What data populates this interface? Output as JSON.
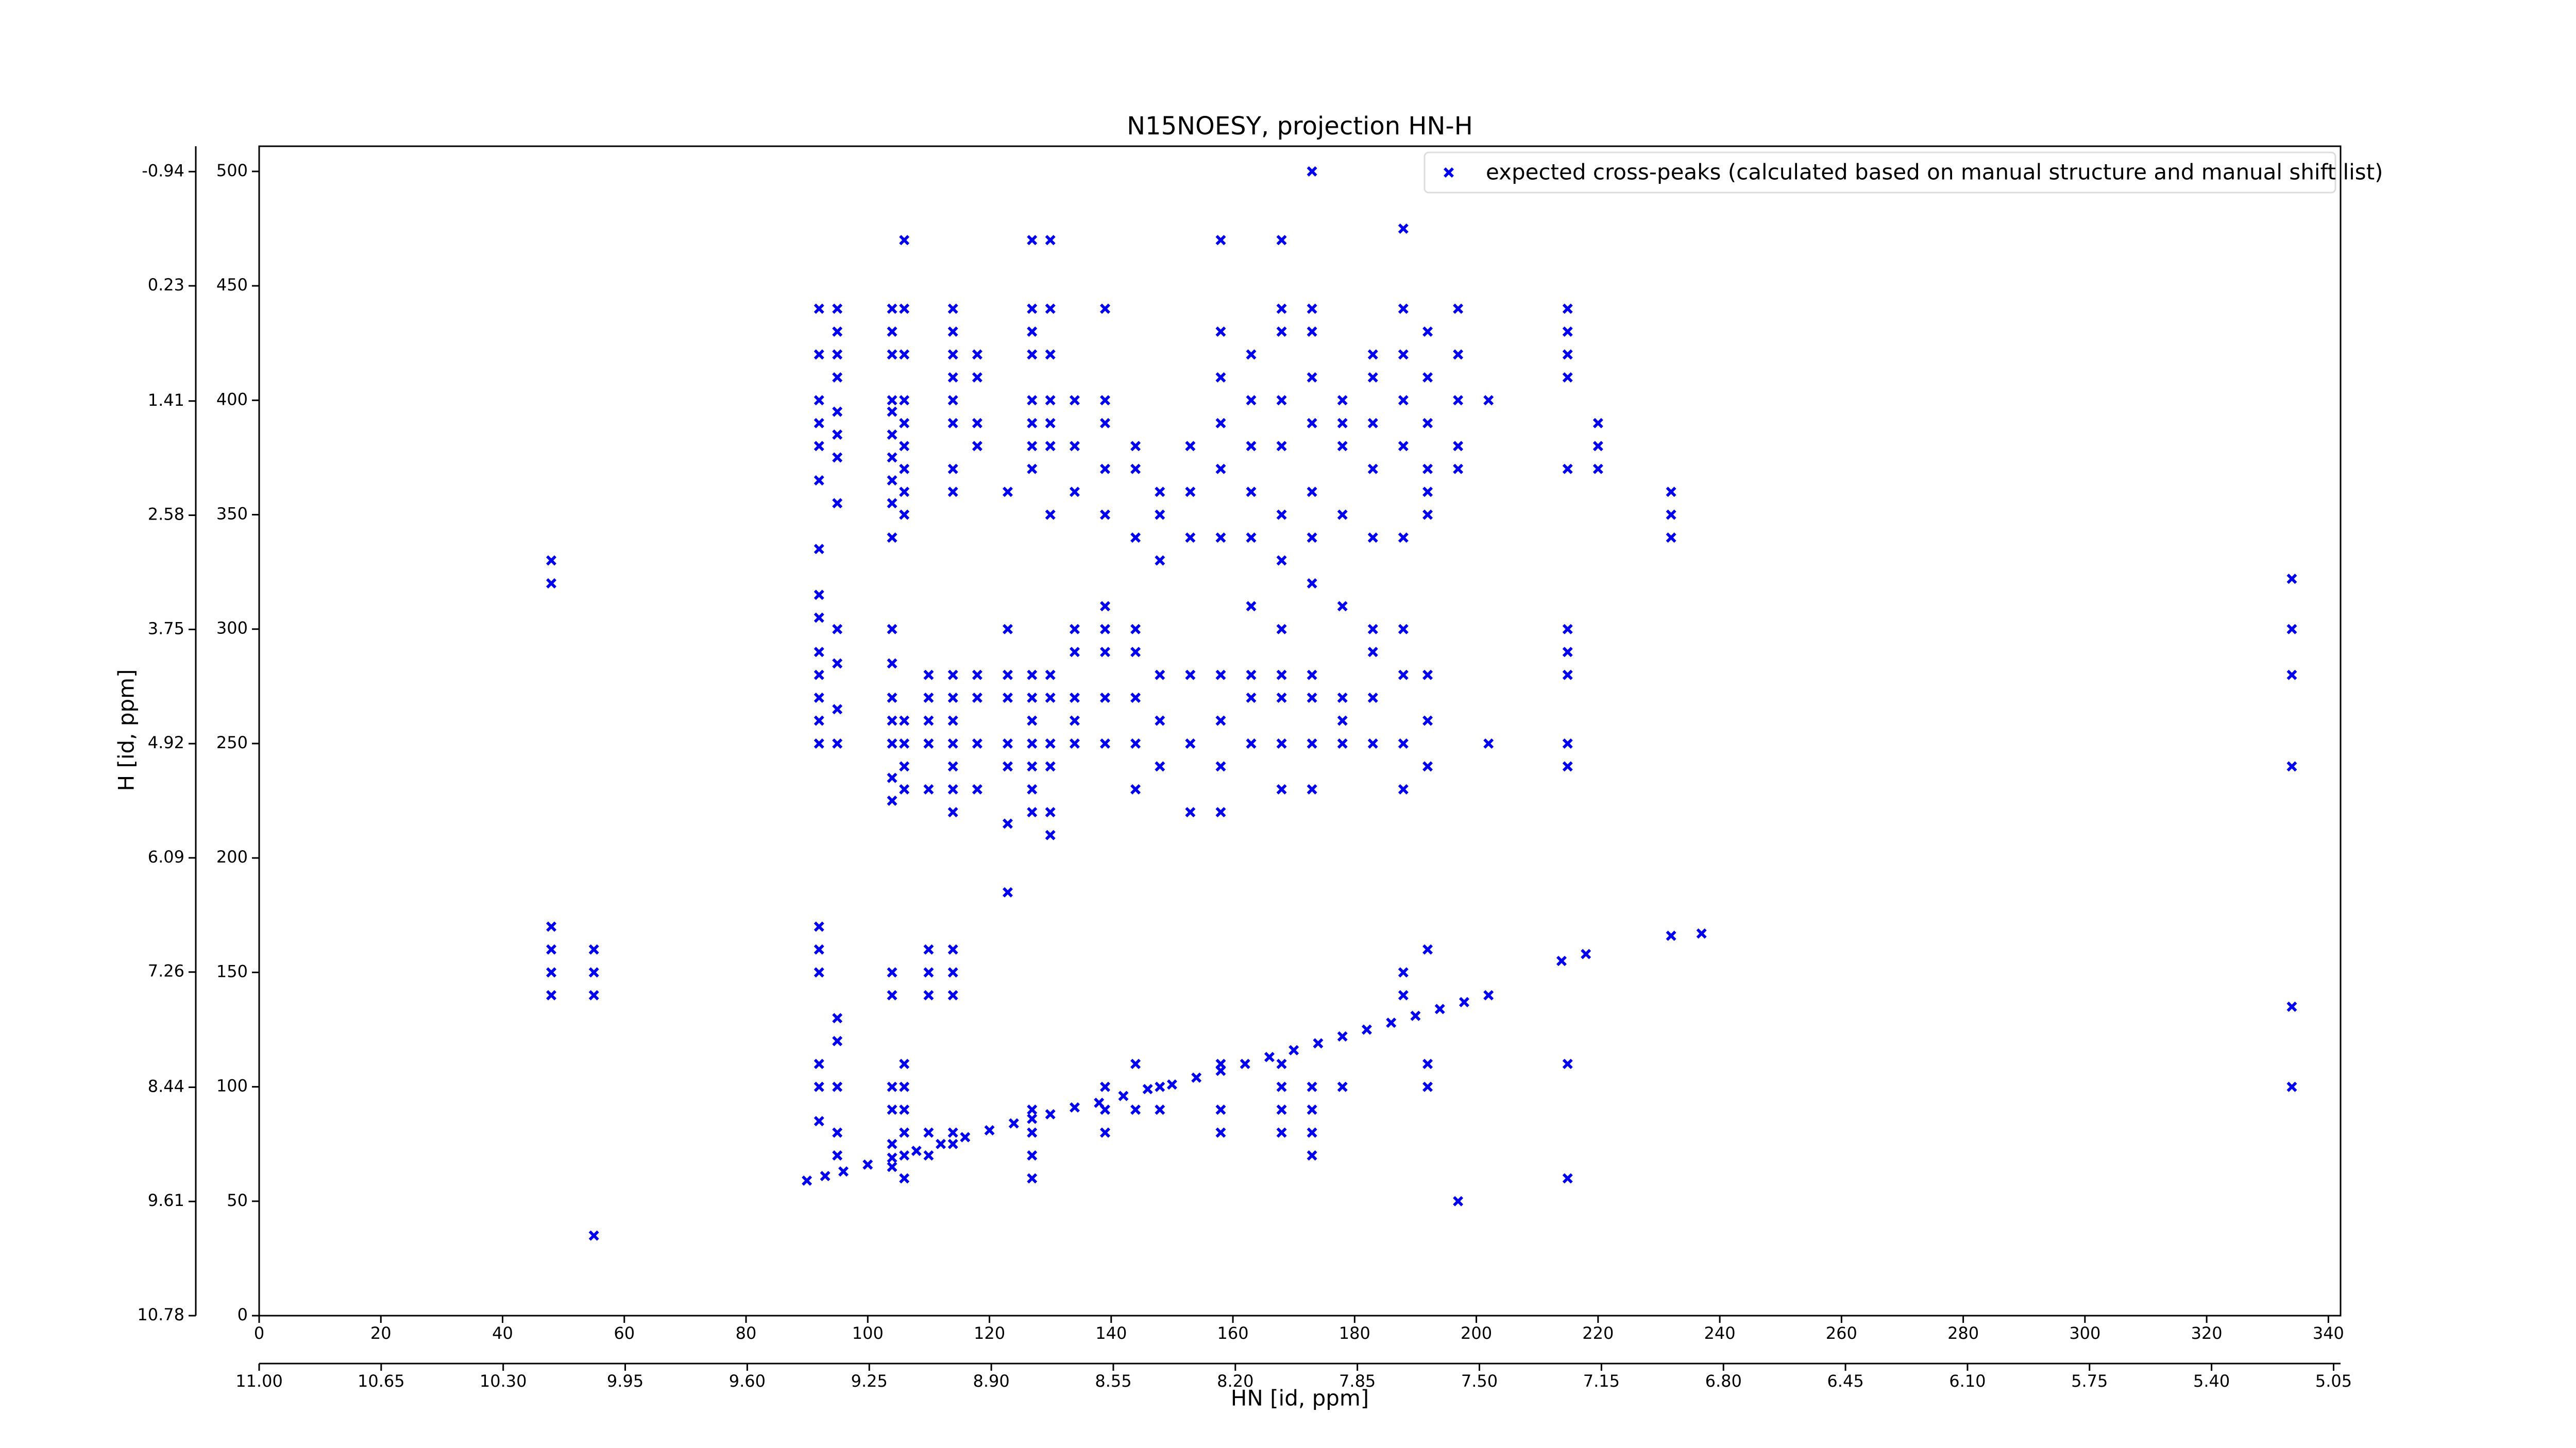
{
  "chart_data": {
    "type": "scatter",
    "title": "N15NOESY, projection HN-H",
    "x_label": "HN [id, ppm]",
    "y_label": "H [id, ppm]",
    "xlim": [
      0,
      342
    ],
    "xticks": [
      0,
      20,
      40,
      60,
      80,
      100,
      120,
      140,
      160,
      180,
      200,
      220,
      240,
      260,
      280,
      300,
      320,
      340
    ],
    "x2lim": [
      11.0,
      5.03
    ],
    "x2ticks": [
      {
        "value": 11.0,
        "label": "11.00"
      },
      {
        "value": 10.65,
        "label": "10.65"
      },
      {
        "value": 10.3,
        "label": "10.30"
      },
      {
        "value": 9.95,
        "label": "9.95"
      },
      {
        "value": 9.6,
        "label": "9.60"
      },
      {
        "value": 9.25,
        "label": "9.25"
      },
      {
        "value": 8.9,
        "label": "8.90"
      },
      {
        "value": 8.55,
        "label": "8.55"
      },
      {
        "value": 8.2,
        "label": "8.20"
      },
      {
        "value": 7.85,
        "label": "7.85"
      },
      {
        "value": 7.5,
        "label": "7.50"
      },
      {
        "value": 7.15,
        "label": "7.15"
      },
      {
        "value": 6.8,
        "label": "6.80"
      },
      {
        "value": 6.45,
        "label": "6.45"
      },
      {
        "value": 6.1,
        "label": "6.10"
      },
      {
        "value": 5.75,
        "label": "5.75"
      },
      {
        "value": 5.4,
        "label": "5.40"
      },
      {
        "value": 5.05,
        "label": "5.05"
      }
    ],
    "ylim": [
      0,
      511
    ],
    "yticks": [
      0,
      50,
      100,
      150,
      200,
      250,
      300,
      350,
      400,
      450,
      500
    ],
    "y2lim": [
      10.78,
      -1.2
    ],
    "y2ticks": [
      10.78,
      9.61,
      8.44,
      7.26,
      6.09,
      4.92,
      3.75,
      2.58,
      1.41,
      0.23,
      -0.94
    ],
    "legend": "upper right",
    "series": [
      {
        "name": "expected cross-peaks (calculated based on manual structure and manual shift list)",
        "color": "#0000ee",
        "x": [
          90,
          93,
          96,
          100,
          104,
          108,
          112,
          116,
          120,
          124,
          127,
          130,
          134,
          138,
          142,
          146,
          150,
          154,
          158,
          162,
          166,
          170,
          174,
          178,
          182,
          186,
          190,
          194,
          198,
          202,
          214,
          218,
          232,
          237,
          92,
          92,
          92,
          92,
          92,
          92,
          92,
          92,
          92,
          92,
          92,
          92,
          92,
          92,
          92,
          92,
          92,
          92,
          92,
          92,
          95,
          95,
          95,
          95,
          95,
          95,
          95,
          95,
          95,
          95,
          95,
          95,
          95,
          95,
          95,
          95,
          95,
          104,
          104,
          104,
          104,
          104,
          104,
          104,
          104,
          104,
          104,
          104,
          104,
          104,
          104,
          104,
          104,
          104,
          104,
          104,
          104,
          104,
          104,
          104,
          106,
          106,
          106,
          106,
          106,
          106,
          106,
          106,
          106,
          106,
          106,
          106,
          106,
          106,
          106,
          106,
          106,
          106,
          106,
          110,
          110,
          110,
          110,
          110,
          110,
          110,
          110,
          110,
          110,
          114,
          114,
          114,
          114,
          114,
          114,
          114,
          114,
          114,
          114,
          114,
          114,
          114,
          114,
          114,
          114,
          114,
          114,
          114,
          114,
          118,
          118,
          118,
          118,
          118,
          118,
          118,
          118,
          123,
          123,
          123,
          123,
          123,
          123,
          123,
          123,
          127,
          127,
          127,
          127,
          127,
          127,
          127,
          127,
          127,
          127,
          127,
          127,
          127,
          127,
          127,
          127,
          127,
          127,
          127,
          130,
          130,
          130,
          130,
          130,
          130,
          130,
          130,
          130,
          130,
          130,
          130,
          130,
          134,
          134,
          134,
          134,
          134,
          134,
          134,
          134,
          139,
          139,
          139,
          139,
          139,
          139,
          139,
          139,
          139,
          139,
          139,
          139,
          139,
          144,
          144,
          144,
          144,
          144,
          144,
          144,
          144,
          144,
          144,
          148,
          148,
          148,
          148,
          148,
          148,
          148,
          148,
          153,
          153,
          153,
          153,
          153,
          153,
          158,
          158,
          158,
          158,
          158,
          158,
          158,
          158,
          158,
          158,
          158,
          158,
          158,
          163,
          163,
          163,
          163,
          163,
          163,
          163,
          163,
          163,
          168,
          168,
          168,
          168,
          168,
          168,
          168,
          168,
          168,
          168,
          168,
          168,
          168,
          168,
          168,
          168,
          173,
          173,
          173,
          173,
          173,
          173,
          173,
          173,
          173,
          173,
          173,
          173,
          173,
          173,
          173,
          173,
          178,
          178,
          178,
          178,
          178,
          178,
          178,
          178,
          178,
          183,
          183,
          183,
          183,
          183,
          183,
          183,
          183,
          183,
          188,
          188,
          188,
          188,
          188,
          188,
          188,
          188,
          188,
          188,
          188,
          188,
          192,
          192,
          192,
          192,
          192,
          192,
          192,
          192,
          192,
          192,
          192,
          192,
          197,
          197,
          197,
          197,
          197,
          197,
          202,
          202,
          215,
          215,
          215,
          215,
          215,
          215,
          215,
          215,
          215,
          215,
          215,
          215,
          220,
          220,
          220,
          232,
          232,
          232,
          334,
          334,
          334,
          334,
          334,
          334,
          48,
          48,
          48,
          48,
          48,
          48,
          55,
          55,
          55,
          55
        ],
        "values": [
          59,
          61,
          63,
          66,
          69,
          72,
          75,
          78,
          81,
          84,
          86,
          88,
          91,
          93,
          96,
          99,
          101,
          104,
          107,
          110,
          113,
          116,
          119,
          122,
          125,
          128,
          131,
          134,
          137,
          140,
          155,
          158,
          166,
          167,
          440,
          420,
          400,
          390,
          380,
          365,
          335,
          315,
          305,
          290,
          280,
          270,
          260,
          250,
          170,
          160,
          150,
          110,
          100,
          85,
          440,
          430,
          420,
          410,
          395,
          385,
          375,
          355,
          300,
          285,
          265,
          250,
          130,
          120,
          100,
          80,
          70,
          440,
          430,
          420,
          400,
          395,
          385,
          375,
          365,
          355,
          340,
          300,
          285,
          270,
          260,
          250,
          235,
          225,
          150,
          140,
          100,
          90,
          75,
          65,
          470,
          440,
          420,
          400,
          390,
          380,
          370,
          360,
          350,
          260,
          250,
          240,
          230,
          110,
          100,
          90,
          80,
          70,
          60,
          280,
          270,
          260,
          250,
          230,
          160,
          150,
          140,
          80,
          70,
          440,
          430,
          420,
          410,
          400,
          390,
          370,
          360,
          280,
          270,
          260,
          250,
          240,
          230,
          220,
          160,
          150,
          140,
          80,
          75,
          420,
          410,
          390,
          380,
          280,
          270,
          250,
          230,
          360,
          300,
          280,
          270,
          250,
          240,
          215,
          185,
          470,
          440,
          430,
          420,
          400,
          390,
          380,
          370,
          280,
          270,
          260,
          250,
          240,
          230,
          220,
          90,
          80,
          70,
          60,
          470,
          440,
          420,
          400,
          390,
          380,
          350,
          280,
          270,
          250,
          240,
          220,
          210,
          400,
          380,
          360,
          300,
          290,
          270,
          260,
          250,
          440,
          400,
          390,
          370,
          350,
          310,
          300,
          290,
          270,
          250,
          100,
          90,
          80,
          380,
          370,
          340,
          300,
          290,
          270,
          250,
          230,
          110,
          90,
          360,
          350,
          330,
          280,
          260,
          240,
          100,
          90,
          380,
          360,
          340,
          280,
          250,
          220,
          470,
          430,
          410,
          390,
          370,
          340,
          280,
          260,
          240,
          220,
          110,
          90,
          80,
          420,
          400,
          380,
          360,
          340,
          310,
          280,
          270,
          250,
          470,
          440,
          430,
          400,
          380,
          350,
          330,
          300,
          280,
          270,
          250,
          230,
          110,
          100,
          90,
          80,
          500,
          440,
          430,
          410,
          390,
          360,
          340,
          320,
          280,
          270,
          250,
          230,
          100,
          90,
          80,
          70,
          400,
          390,
          380,
          350,
          310,
          270,
          260,
          250,
          100,
          420,
          410,
          390,
          370,
          340,
          300,
          290,
          270,
          250,
          475,
          440,
          420,
          400,
          380,
          340,
          300,
          280,
          250,
          230,
          150,
          140,
          430,
          410,
          390,
          370,
          360,
          350,
          280,
          260,
          240,
          160,
          110,
          100,
          440,
          420,
          400,
          380,
          370,
          50,
          400,
          250,
          440,
          430,
          420,
          410,
          370,
          300,
          290,
          280,
          250,
          240,
          110,
          60,
          390,
          380,
          370,
          360,
          350,
          340,
          322,
          300,
          280,
          240,
          135,
          100,
          330,
          320,
          170,
          160,
          150,
          140,
          160,
          150,
          140,
          35
        ]
      }
    ]
  }
}
